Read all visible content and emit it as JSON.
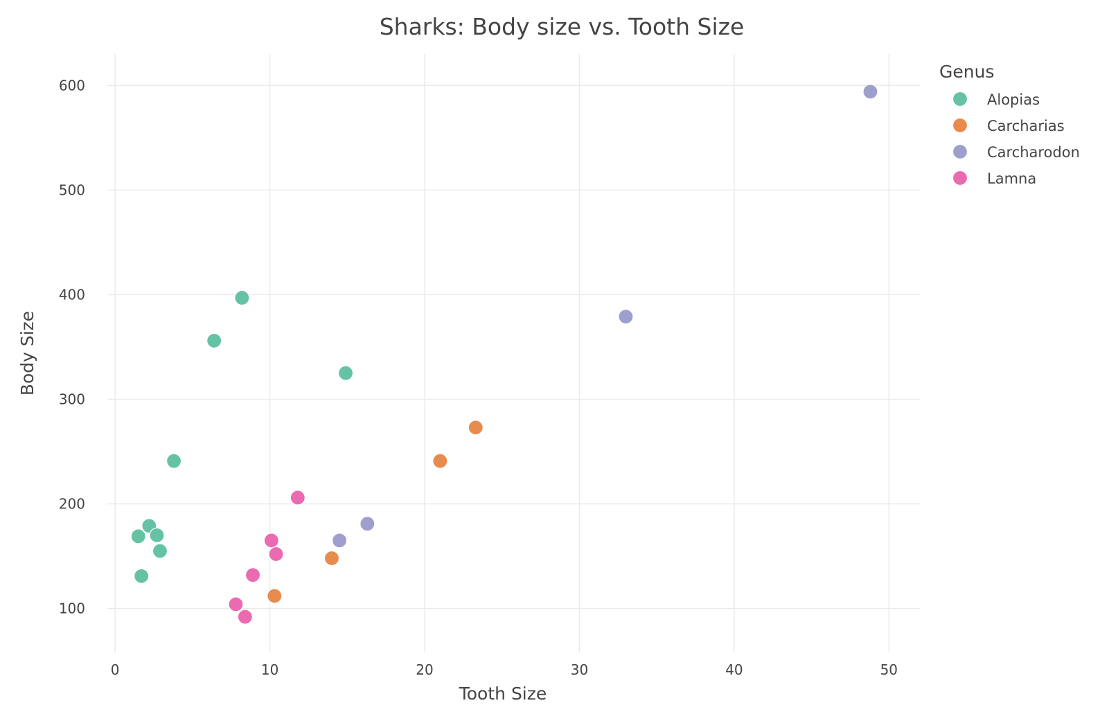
{
  "chart_data": {
    "type": "scatter",
    "title": "Sharks: Body size vs. Tooth Size",
    "xlabel": "Tooth Size",
    "ylabel": "Body Size",
    "xlim": [
      -0.5,
      52
    ],
    "ylim": [
      58,
      630
    ],
    "xticks": [
      0,
      10,
      20,
      30,
      40,
      50
    ],
    "yticks": [
      100,
      200,
      300,
      400,
      500,
      600
    ],
    "grid": true,
    "legend": {
      "title": "Genus",
      "placement": "right"
    },
    "series": [
      {
        "name": "Alopias",
        "color": "#66c2a5",
        "points": [
          {
            "x": 1.5,
            "y": 169
          },
          {
            "x": 1.7,
            "y": 131
          },
          {
            "x": 2.2,
            "y": 179
          },
          {
            "x": 2.7,
            "y": 170
          },
          {
            "x": 2.9,
            "y": 155
          },
          {
            "x": 3.8,
            "y": 241
          },
          {
            "x": 6.4,
            "y": 356
          },
          {
            "x": 8.2,
            "y": 397
          },
          {
            "x": 14.9,
            "y": 325
          }
        ]
      },
      {
        "name": "Carcharias",
        "color": "#e78b4e",
        "points": [
          {
            "x": 10.3,
            "y": 112
          },
          {
            "x": 14.0,
            "y": 148
          },
          {
            "x": 21.0,
            "y": 241
          },
          {
            "x": 23.3,
            "y": 273
          }
        ]
      },
      {
        "name": "Carcharodon",
        "color": "#9f9fcd",
        "points": [
          {
            "x": 14.5,
            "y": 165
          },
          {
            "x": 16.3,
            "y": 181
          },
          {
            "x": 33.0,
            "y": 379
          },
          {
            "x": 48.8,
            "y": 594
          }
        ]
      },
      {
        "name": "Lamna",
        "color": "#ea6bb1",
        "points": [
          {
            "x": 7.8,
            "y": 104
          },
          {
            "x": 8.4,
            "y": 92
          },
          {
            "x": 8.9,
            "y": 132
          },
          {
            "x": 10.1,
            "y": 165
          },
          {
            "x": 10.4,
            "y": 152
          },
          {
            "x": 11.8,
            "y": 206
          }
        ]
      }
    ]
  }
}
